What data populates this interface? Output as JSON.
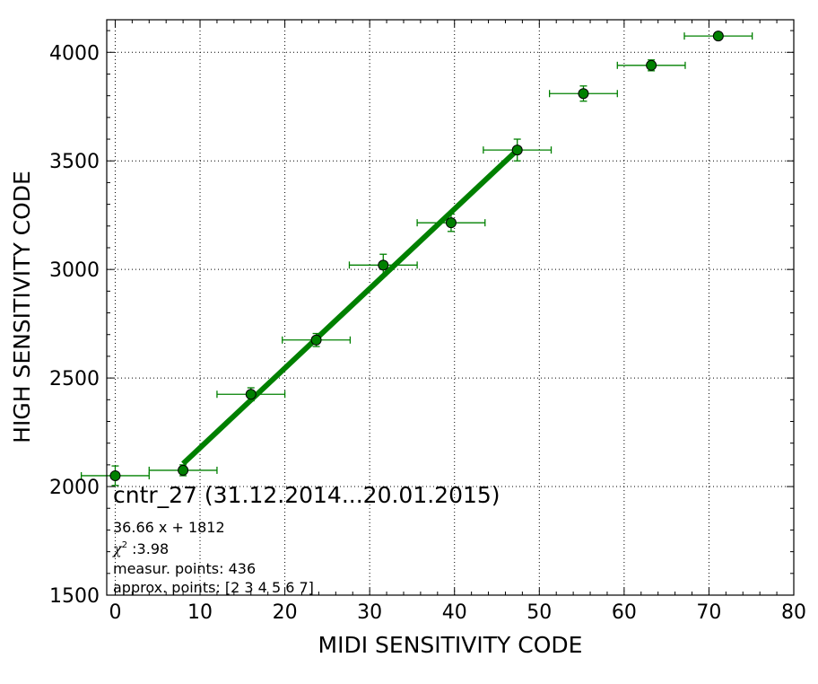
{
  "chart_data": {
    "type": "scatter",
    "xlabel": "MIDI SENSITIVITY CODE",
    "ylabel": "HIGH SENSITIVITY CODE",
    "xlim": [
      -1,
      80
    ],
    "ylim": [
      1500,
      4150
    ],
    "x_ticks": [
      0,
      10,
      20,
      30,
      40,
      50,
      60,
      70,
      80
    ],
    "y_ticks": [
      1500,
      2000,
      2500,
      3000,
      3500,
      4000
    ],
    "grid": true,
    "marker_color": "#008000",
    "fit_color": "#008000",
    "points": [
      {
        "x": 0.0,
        "y": 2050,
        "xerr": 4.0,
        "yerr": 45
      },
      {
        "x": 8.0,
        "y": 2075,
        "xerr": 4.0,
        "yerr": 25
      },
      {
        "x": 16.0,
        "y": 2425,
        "xerr": 4.0,
        "yerr": 30
      },
      {
        "x": 23.7,
        "y": 2675,
        "xerr": 4.0,
        "yerr": 30
      },
      {
        "x": 31.6,
        "y": 3020,
        "xerr": 4.0,
        "yerr": 50
      },
      {
        "x": 39.6,
        "y": 3215,
        "xerr": 4.0,
        "yerr": 40
      },
      {
        "x": 47.4,
        "y": 3550,
        "xerr": 4.0,
        "yerr": 50
      },
      {
        "x": 55.2,
        "y": 3810,
        "xerr": 4.0,
        "yerr": 35
      },
      {
        "x": 63.2,
        "y": 3940,
        "xerr": 4.0,
        "yerr": 25
      },
      {
        "x": 71.1,
        "y": 4075,
        "xerr": 4.0,
        "yerr": 15
      }
    ],
    "fit": {
      "slope": 36.66,
      "intercept": 1812,
      "x_start": 8.0,
      "x_end": 47.4
    },
    "annotations": {
      "title": "cntr_27 (31.12.2014...20.01.2015)",
      "equation": "36.66 x + 1812",
      "chi2_symbol": "χ",
      "chi2_exponent": "2",
      "chi2_value": " :3.98",
      "measur_points": "measur. points: 436",
      "approx_points": "approx. points: [2 3 4 5 6 7]"
    }
  }
}
